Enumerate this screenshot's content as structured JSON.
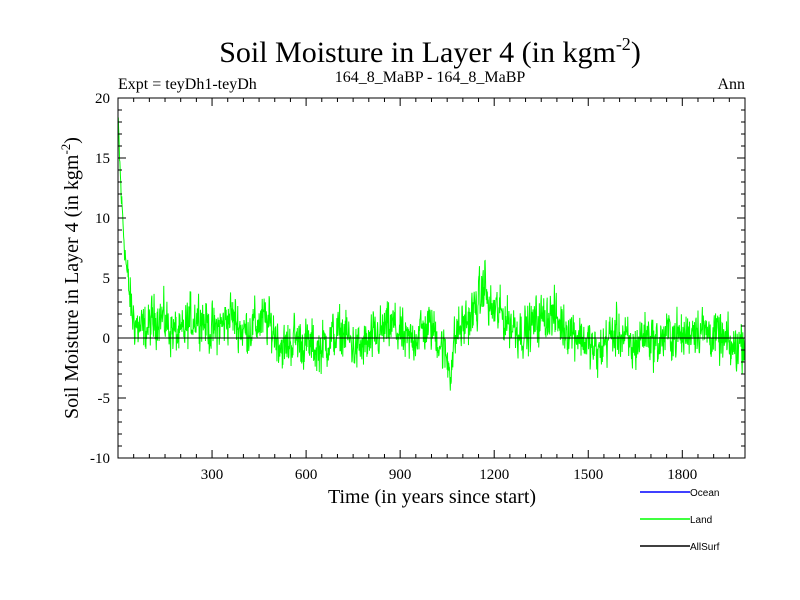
{
  "chart_data": {
    "type": "line",
    "title": "Soil Moisture in Layer 4 (in kgm",
    "title_sup": "-2",
    "title_close": ")",
    "subtitle_left": "Expt = teyDh1-teyDh",
    "subtitle_center": "164_8_MaBP - 164_8_MaBP",
    "subtitle_right": "Ann",
    "xlabel": "Time (in years since start)",
    "ylabel": "Soil Moisture in Layer 4 (in kgm",
    "ylabel_sup": "-2",
    "ylabel_close": ")",
    "xlim": [
      0,
      2000
    ],
    "ylim": [
      -10,
      20
    ],
    "xticks": [
      300,
      600,
      900,
      1200,
      1500,
      1800
    ],
    "xtick_labels": [
      "300",
      "600",
      "900",
      "1200",
      "1500",
      "1800"
    ],
    "yticks": [
      -10,
      -5,
      0,
      5,
      10,
      15,
      20
    ],
    "ytick_labels": [
      "-10",
      "-5",
      "0",
      "5",
      "10",
      "15",
      "20"
    ],
    "reference_line": 0,
    "colors": {
      "Ocean": "#0000ff",
      "Land": "#00ff00",
      "AllSurf": "#000000"
    },
    "series": [
      {
        "name": "Ocean",
        "values": []
      },
      {
        "name": "Land",
        "x": [
          0,
          10,
          20,
          30,
          45,
          60,
          80,
          100,
          130,
          160,
          200,
          230,
          260,
          300,
          330,
          360,
          400,
          430,
          470,
          500,
          530,
          560,
          600,
          640,
          680,
          720,
          760,
          800,
          840,
          880,
          920,
          960,
          1000,
          1030,
          1060,
          1080,
          1100,
          1130,
          1160,
          1170,
          1180,
          1220,
          1260,
          1300,
          1340,
          1380,
          1420,
          1460,
          1500,
          1530,
          1560,
          1600,
          1640,
          1680,
          1720,
          1760,
          1800,
          1840,
          1880,
          1920,
          1960,
          2000
        ],
        "values": [
          18,
          12,
          8,
          5,
          2,
          1,
          0.5,
          1,
          2,
          1,
          0,
          1.5,
          2,
          0.5,
          1,
          2,
          0.5,
          1,
          1.5,
          0.5,
          -1,
          0,
          -0.5,
          -1,
          0,
          0.5,
          -1,
          -0.5,
          0.5,
          1,
          -0.5,
          0.5,
          1,
          -0.5,
          -2.5,
          0.5,
          1,
          2,
          3.5,
          5,
          2.5,
          2,
          1,
          0.5,
          1.5,
          2,
          1,
          0.5,
          -0.5,
          -1.5,
          0,
          0.5,
          -1,
          0.5,
          -0.5,
          0.5,
          0,
          1,
          0.5,
          0,
          -1,
          0
        ]
      },
      {
        "name": "AllSurf",
        "values": []
      }
    ],
    "legend": [
      "Ocean",
      "Land",
      "AllSurf"
    ],
    "legend_position": "bottom-right"
  }
}
